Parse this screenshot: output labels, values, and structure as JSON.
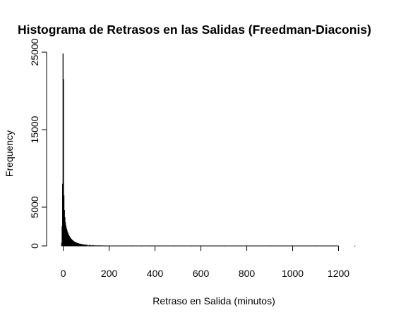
{
  "chart_data": {
    "type": "bar",
    "title": "Histograma de Retrasos en las Salidas (Freedman-Diaconis)",
    "xlabel": "Retraso en Salida (minutos)",
    "ylabel": "Frequency",
    "xlim": [
      -45,
      1300
    ],
    "ylim": [
      0,
      25000
    ],
    "x_ticks": [
      0,
      200,
      400,
      600,
      800,
      1000,
      1200
    ],
    "x_tick_labels": [
      "0",
      "200",
      "400",
      "600",
      "800",
      "1000",
      "1200"
    ],
    "y_ticks": [
      0,
      5000,
      15000,
      25000
    ],
    "y_tick_labels": [
      "0",
      "5000",
      "15000",
      "25000"
    ],
    "grid": false,
    "bin_width": 2,
    "bins": [
      {
        "x": -8,
        "y": 400
      },
      {
        "x": -6,
        "y": 2500
      },
      {
        "x": -4,
        "y": 8000
      },
      {
        "x": -2,
        "y": 24800
      },
      {
        "x": 0,
        "y": 21500
      },
      {
        "x": 2,
        "y": 6500
      },
      {
        "x": 4,
        "y": 4600
      },
      {
        "x": 6,
        "y": 3700
      },
      {
        "x": 8,
        "y": 3100
      },
      {
        "x": 10,
        "y": 2700
      },
      {
        "x": 12,
        "y": 2400
      },
      {
        "x": 14,
        "y": 2150
      },
      {
        "x": 16,
        "y": 1950
      },
      {
        "x": 18,
        "y": 1750
      },
      {
        "x": 20,
        "y": 1600
      },
      {
        "x": 22,
        "y": 1450
      },
      {
        "x": 24,
        "y": 1330
      },
      {
        "x": 26,
        "y": 1220
      },
      {
        "x": 28,
        "y": 1120
      },
      {
        "x": 30,
        "y": 1030
      },
      {
        "x": 32,
        "y": 950
      },
      {
        "x": 34,
        "y": 880
      },
      {
        "x": 36,
        "y": 810
      },
      {
        "x": 38,
        "y": 750
      },
      {
        "x": 40,
        "y": 700
      },
      {
        "x": 42,
        "y": 650
      },
      {
        "x": 44,
        "y": 600
      },
      {
        "x": 46,
        "y": 560
      },
      {
        "x": 48,
        "y": 520
      },
      {
        "x": 50,
        "y": 485
      },
      {
        "x": 52,
        "y": 455
      },
      {
        "x": 54,
        "y": 425
      },
      {
        "x": 56,
        "y": 400
      },
      {
        "x": 58,
        "y": 375
      },
      {
        "x": 60,
        "y": 355
      },
      {
        "x": 62,
        "y": 335
      },
      {
        "x": 64,
        "y": 315
      },
      {
        "x": 66,
        "y": 298
      },
      {
        "x": 68,
        "y": 282
      },
      {
        "x": 70,
        "y": 267
      },
      {
        "x": 72,
        "y": 253
      },
      {
        "x": 74,
        "y": 240
      },
      {
        "x": 76,
        "y": 228
      },
      {
        "x": 78,
        "y": 216
      },
      {
        "x": 80,
        "y": 205
      },
      {
        "x": 84,
        "y": 185
      },
      {
        "x": 88,
        "y": 168
      },
      {
        "x": 92,
        "y": 152
      },
      {
        "x": 96,
        "y": 138
      },
      {
        "x": 100,
        "y": 125
      },
      {
        "x": 106,
        "y": 110
      },
      {
        "x": 112,
        "y": 96
      },
      {
        "x": 118,
        "y": 84
      },
      {
        "x": 124,
        "y": 74
      },
      {
        "x": 130,
        "y": 66
      },
      {
        "x": 138,
        "y": 57
      },
      {
        "x": 146,
        "y": 50
      },
      {
        "x": 154,
        "y": 44
      },
      {
        "x": 162,
        "y": 39
      },
      {
        "x": 170,
        "y": 34
      },
      {
        "x": 180,
        "y": 29
      },
      {
        "x": 190,
        "y": 25
      },
      {
        "x": 200,
        "y": 21
      },
      {
        "x": 220,
        "y": 16
      },
      {
        "x": 240,
        "y": 12
      },
      {
        "x": 260,
        "y": 9
      },
      {
        "x": 280,
        "y": 7
      },
      {
        "x": 300,
        "y": 6
      },
      {
        "x": 340,
        "y": 4
      },
      {
        "x": 380,
        "y": 3
      },
      {
        "x": 420,
        "y": 2
      },
      {
        "x": 480,
        "y": 2
      },
      {
        "x": 560,
        "y": 1
      },
      {
        "x": 700,
        "y": 1
      },
      {
        "x": 900,
        "y": 1
      },
      {
        "x": 1100,
        "y": 1
      },
      {
        "x": 1270,
        "y": 1
      }
    ]
  }
}
